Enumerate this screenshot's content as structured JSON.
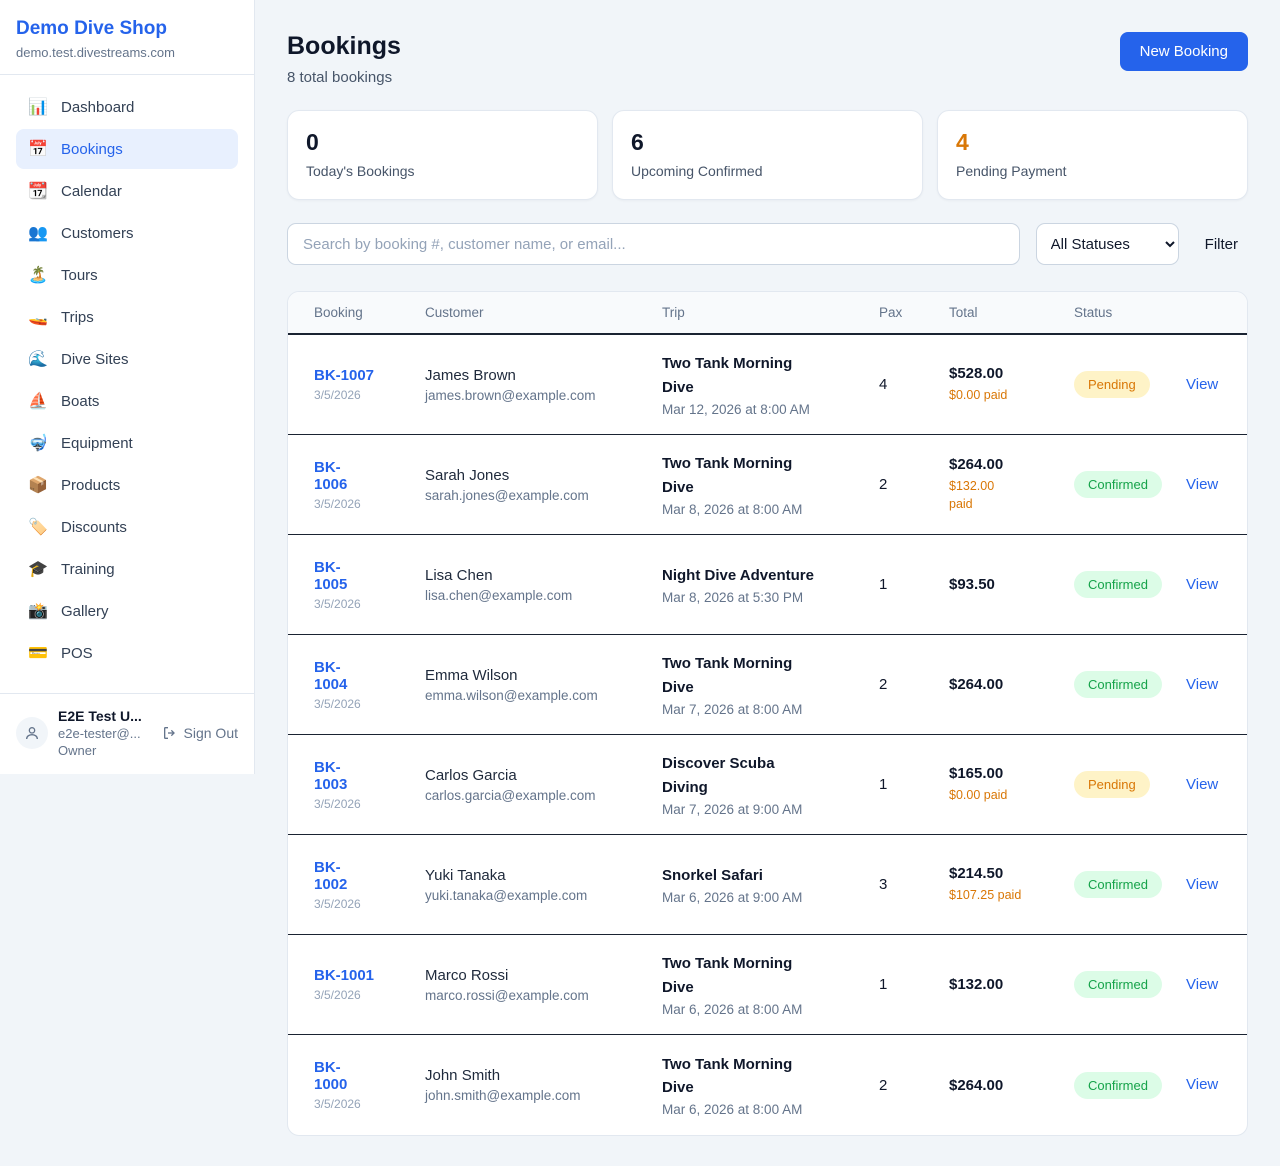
{
  "sidebar": {
    "brand": {
      "name": "Demo Dive Shop",
      "domain": "demo.test.divestreams.com"
    },
    "items": [
      {
        "icon": "📊",
        "icon_name": "bar-chart-icon",
        "label": "Dashboard",
        "active": false
      },
      {
        "icon": "📅",
        "icon_name": "calendar-17-icon",
        "label": "Bookings",
        "active": true
      },
      {
        "icon": "📆",
        "icon_name": "tear-off-calendar-icon",
        "label": "Calendar",
        "active": false
      },
      {
        "icon": "👥",
        "icon_name": "people-icon",
        "label": "Customers",
        "active": false
      },
      {
        "icon": "🏝️",
        "icon_name": "island-icon",
        "label": "Tours",
        "active": false
      },
      {
        "icon": "🚤",
        "icon_name": "speedboat-icon",
        "label": "Trips",
        "active": false
      },
      {
        "icon": "🌊",
        "icon_name": "wave-icon",
        "label": "Dive Sites",
        "active": false
      },
      {
        "icon": "⛵",
        "icon_name": "sailboat-icon",
        "label": "Boats",
        "active": false
      },
      {
        "icon": "🤿",
        "icon_name": "diving-mask-icon",
        "label": "Equipment",
        "active": false
      },
      {
        "icon": "📦",
        "icon_name": "package-icon",
        "label": "Products",
        "active": false
      },
      {
        "icon": "🏷️",
        "icon_name": "tag-icon",
        "label": "Discounts",
        "active": false
      },
      {
        "icon": "🎓",
        "icon_name": "graduation-cap-icon",
        "label": "Training",
        "active": false
      },
      {
        "icon": "📸",
        "icon_name": "camera-icon",
        "label": "Gallery",
        "active": false
      },
      {
        "icon": "💳",
        "icon_name": "credit-card-icon",
        "label": "POS",
        "active": false
      }
    ],
    "user": {
      "name": "E2E Test U...",
      "email": "e2e-tester@...",
      "role": "Owner",
      "sign_out_label": "Sign Out"
    }
  },
  "header": {
    "title": "Bookings",
    "subtitle": "8 total bookings",
    "new_booking_label": "New Booking"
  },
  "stats": [
    {
      "value": "0",
      "label": "Today's Bookings",
      "value_color": "#0f172a"
    },
    {
      "value": "6",
      "label": "Upcoming Confirmed",
      "value_color": "#0f172a"
    },
    {
      "value": "4",
      "label": "Pending Payment",
      "value_color": "#d97706"
    }
  ],
  "filters": {
    "search_placeholder": "Search by booking #, customer name, or email...",
    "status_selected": "All Statuses",
    "filter_label": "Filter"
  },
  "table": {
    "columns": [
      "Booking",
      "Customer",
      "Trip",
      "Pax",
      "Total",
      "Status"
    ],
    "view_label": "View",
    "badge_colors": {
      "Pending": {
        "bg": "#fef3c7",
        "text": "#d97706"
      },
      "Confirmed": {
        "bg": "#dcfce7",
        "text": "#16a34a"
      }
    },
    "rows": [
      {
        "id": "BK-1007",
        "date": "3/5/2026",
        "customer": "James Brown",
        "email": "james.brown@example.com",
        "trip": "Two Tank Morning\nDive",
        "trip_date": "Mar 12, 2026 at 8:00 AM",
        "pax": "4",
        "total": "$528.00",
        "paid": "$0.00 paid",
        "status": "Pending"
      },
      {
        "id": "BK-\n1006",
        "date": "3/5/2026",
        "customer": "Sarah Jones",
        "email": "sarah.jones@example.com",
        "trip": "Two Tank Morning\nDive",
        "trip_date": "Mar 8, 2026 at 8:00 AM",
        "pax": "2",
        "total": "$264.00",
        "paid": "$132.00\npaid",
        "status": "Confirmed"
      },
      {
        "id": "BK-\n1005",
        "date": "3/5/2026",
        "customer": "Lisa Chen",
        "email": "lisa.chen@example.com",
        "trip": "Night Dive Adventure",
        "trip_date": "Mar 8, 2026 at 5:30 PM",
        "pax": "1",
        "total": "$93.50",
        "paid": "",
        "status": "Confirmed"
      },
      {
        "id": "BK-\n1004",
        "date": "3/5/2026",
        "customer": "Emma Wilson",
        "email": "emma.wilson@example.com",
        "trip": "Two Tank Morning\nDive",
        "trip_date": "Mar 7, 2026 at 8:00 AM",
        "pax": "2",
        "total": "$264.00",
        "paid": "",
        "status": "Confirmed"
      },
      {
        "id": "BK-\n1003",
        "date": "3/5/2026",
        "customer": "Carlos Garcia",
        "email": "carlos.garcia@example.com",
        "trip": "Discover Scuba\nDiving",
        "trip_date": "Mar 7, 2026 at 9:00 AM",
        "pax": "1",
        "total": "$165.00",
        "paid": "$0.00 paid",
        "status": "Pending"
      },
      {
        "id": "BK-\n1002",
        "date": "3/5/2026",
        "customer": "Yuki Tanaka",
        "email": "yuki.tanaka@example.com",
        "trip": "Snorkel Safari",
        "trip_date": "Mar 6, 2026 at 9:00 AM",
        "pax": "3",
        "total": "$214.50",
        "paid": "$107.25 paid",
        "status": "Confirmed"
      },
      {
        "id": "BK-1001",
        "date": "3/5/2026",
        "customer": "Marco Rossi",
        "email": "marco.rossi@example.com",
        "trip": "Two Tank Morning\nDive",
        "trip_date": "Mar 6, 2026 at 8:00 AM",
        "pax": "1",
        "total": "$132.00",
        "paid": "",
        "status": "Confirmed"
      },
      {
        "id": "BK-\n1000",
        "date": "3/5/2026",
        "customer": "John Smith",
        "email": "john.smith@example.com",
        "trip": "Two Tank Morning\nDive",
        "trip_date": "Mar 6, 2026 at 8:00 AM",
        "pax": "2",
        "total": "$264.00",
        "paid": "",
        "status": "Confirmed"
      }
    ]
  }
}
